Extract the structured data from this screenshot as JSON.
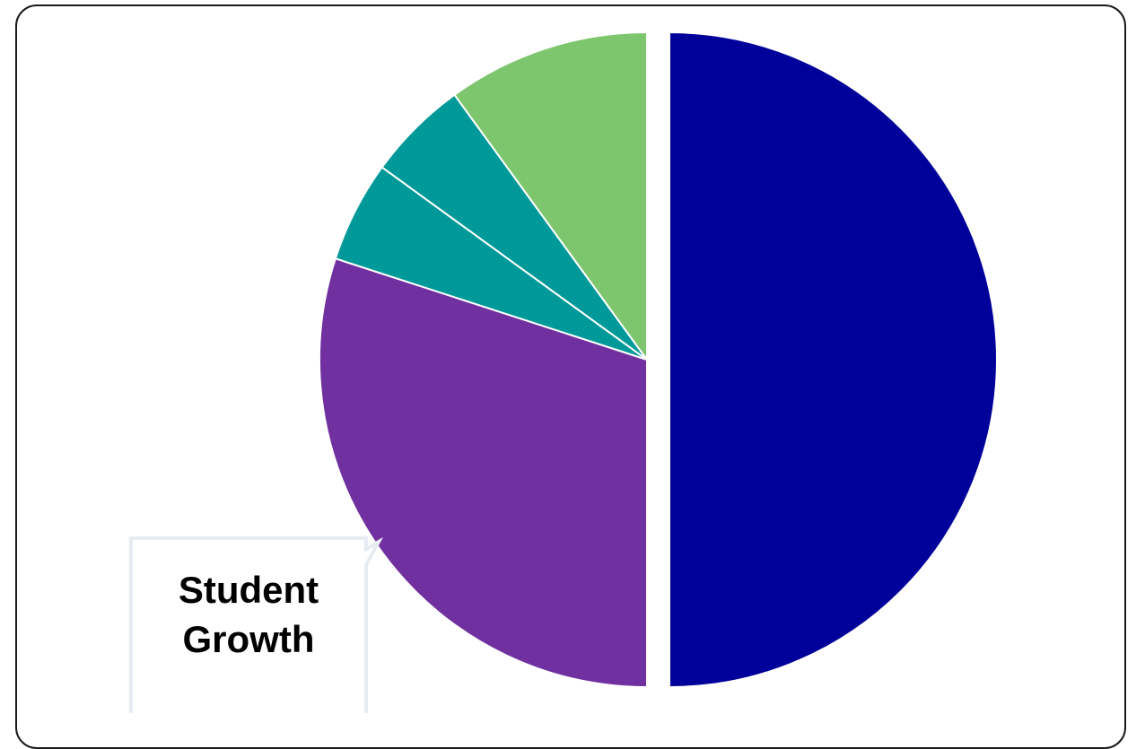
{
  "chart_data": {
    "type": "pie",
    "title": "",
    "slices": [
      {
        "value": 50,
        "color": "#00009A"
      },
      {
        "value": 30,
        "color": "#7030A0"
      },
      {
        "value": 5,
        "color": "#009999"
      },
      {
        "value": 5,
        "color": "#009999"
      },
      {
        "value": 10,
        "color": "#7DC66E"
      }
    ],
    "start_angle_deg": 0,
    "direction": "clockwise",
    "exploded_slice_index": 0,
    "legend": "none"
  },
  "callout": {
    "line1": "Student",
    "line2": "Growth",
    "points_to_slice_index": 1
  }
}
